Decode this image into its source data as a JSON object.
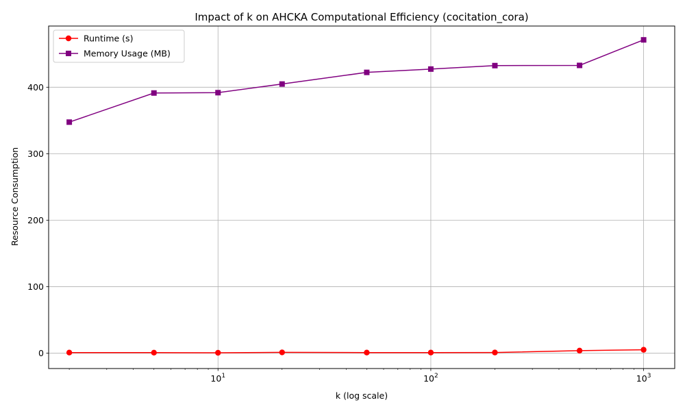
{
  "chart_data": {
    "type": "line",
    "title": "Impact of k on AHCKA Computational Efficiency (cocitation_cora)",
    "xlabel": "k (log scale)",
    "ylabel": "Resource Consumption",
    "xscale": "log",
    "xlim": [
      1.6,
      1400
    ],
    "ylim": [
      -23,
      492
    ],
    "grid": true,
    "legend_position": "top-left",
    "x": [
      2,
      5,
      10,
      20,
      50,
      100,
      200,
      500,
      1000
    ],
    "x_ticks": [
      {
        "value": 10,
        "base": "10",
        "exp": "1"
      },
      {
        "value": 100,
        "base": "10",
        "exp": "2"
      },
      {
        "value": 1000,
        "base": "10",
        "exp": "3"
      }
    ],
    "y_ticks": [
      {
        "value": 0,
        "label": "0"
      },
      {
        "value": 100,
        "label": "100"
      },
      {
        "value": 200,
        "label": "200"
      },
      {
        "value": 300,
        "label": "300"
      },
      {
        "value": 400,
        "label": "400"
      }
    ],
    "series": [
      {
        "name": "Runtime (s)",
        "color": "#ff0000",
        "marker": "circle",
        "values": [
          1.0,
          0.9,
          0.7,
          1.3,
          1.0,
          1.0,
          1.1,
          3.9,
          5.2
        ]
      },
      {
        "name": "Memory Usage (MB)",
        "color": "#800080",
        "marker": "square",
        "values": [
          347.5,
          391.3,
          391.8,
          404.8,
          422.3,
          427.3,
          432.5,
          432.8,
          471.2
        ]
      }
    ]
  }
}
